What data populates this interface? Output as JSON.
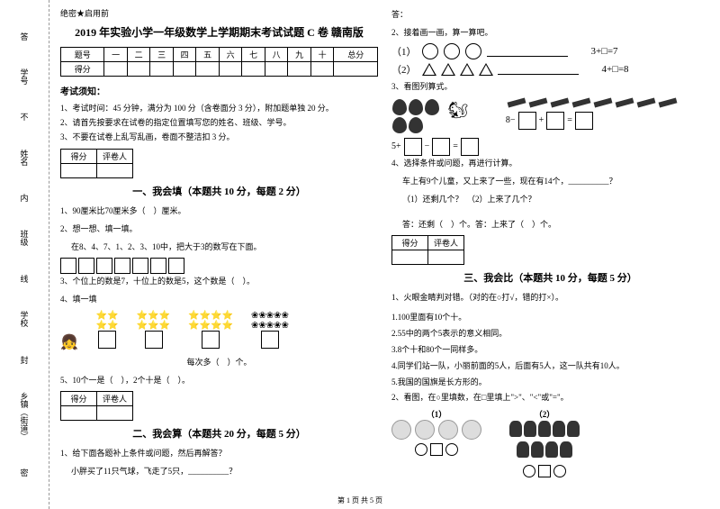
{
  "margin": {
    "l1": "学号",
    "l2": "姓名",
    "l3": "班级",
    "l4": "学校",
    "l5": "乡镇（街道）",
    "hint1": "答",
    "hint2": "不",
    "hint3": "内",
    "hint4": "线",
    "hint5": "封",
    "hint6": "密"
  },
  "secret": "绝密★启用前",
  "title": "2019 年实验小学一年级数学上学期期末考试试题 C 卷 赣南版",
  "score": {
    "h": [
      "题号",
      "一",
      "二",
      "三",
      "四",
      "五",
      "六",
      "七",
      "八",
      "九",
      "十",
      "总分"
    ],
    "r": "得分"
  },
  "instr": {
    "head": "考试须知：",
    "i1": "1、考试时间：45 分钟，满分为 100 分（含卷面分 3 分），附加题单独 20 分。",
    "i2": "2、请首先按要求在试卷的指定位置填写您的姓名、班级、学号。",
    "i3": "3、不要在试卷上乱写乱画，卷面不整洁扣 3 分。"
  },
  "mini": {
    "c1": "得分",
    "c2": "评卷人"
  },
  "s1": {
    "title": "一、我会填（本题共 10 分，每题 2 分）",
    "q1": "1、90厘米比70厘米多（　）厘米。",
    "q2": "2、想一想、填一填。",
    "q2a": "在8、4、7、1、2、3、10中，把大于3的数写在下面。",
    "q3": "3、个位上的数是7，十位上的数是5，这个数是（　）。",
    "q4": "4、填一填",
    "q4a": "每次多（　）个。",
    "q5": "5、10个一是（　），2个十是（　）。"
  },
  "s2": {
    "title": "二、我会算（本题共 20 分，每题 5 分）",
    "q1": "1、给下面各题补上条件或问题，然后再解答？",
    "q1a": "小胖买了11只气球，飞走了5只，__________？",
    "ans": "答：",
    "q2": "2、接着画一画，算一算吧。",
    "eq1": "3+□=7",
    "eq2": "4+□=8",
    "p1": "（1）",
    "p2": "（2）",
    "q3": "3、看图列算式。",
    "m1": "5+",
    "m2": "−",
    "m3": "=",
    "m4": "8−",
    "m5": "+",
    "q4": "4、选择条件或问题，再进行计算。",
    "q4a": "车上有9个儿童，又上来了一些，现在有14个，__________？",
    "q4b": "（1）还剩几个？　（2）上来了几个？",
    "q4c": "答：还剩（　）个。答：上来了（　）个。"
  },
  "s3": {
    "title": "三、我会比（本题共 10 分，每题 5 分）",
    "q1": "1、火眼金睛判对错。（对的在○打√，错的打×）。",
    "q1a": "1.100里面有10个十。",
    "q1b": "2.55中的两个5表示的意义相同。",
    "q1c": "3.8个十和80个一同样多。",
    "q1d": "4.同学们站一队，小丽前面的5人，后面有5人，这一队共有10人。",
    "q1e": "5.我国的国旗是长方形的。",
    "q2": "2、看图，在○里填数，在□里填上\">\"、\"<\"或\"=\"。",
    "p1": "（1）",
    "p2": "（2）"
  },
  "footer": "第 1 页 共 5 页"
}
